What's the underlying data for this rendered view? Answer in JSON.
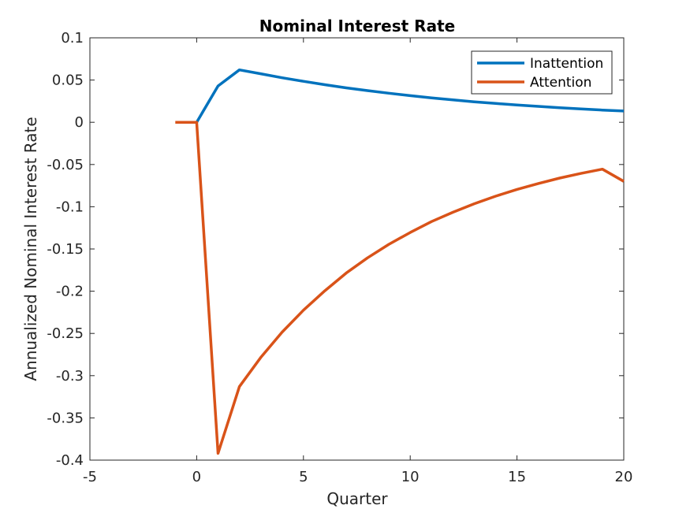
{
  "chart_data": {
    "type": "line",
    "title": "Nominal Interest Rate",
    "xlabel": "Quarter",
    "ylabel": "Annualized Nominal Interest Rate",
    "xlim": [
      -5,
      20
    ],
    "ylim": [
      -0.4,
      0.1
    ],
    "xticks": [
      -5,
      0,
      5,
      10,
      15,
      20
    ],
    "xtick_labels": [
      "-5",
      "0",
      "5",
      "10",
      "15",
      "20"
    ],
    "yticks": [
      0.1,
      0.05,
      0,
      -0.05,
      -0.1,
      -0.15,
      -0.2,
      -0.25,
      -0.3,
      -0.35,
      -0.4
    ],
    "ytick_labels": [
      "0.1",
      "0.05",
      "0",
      "-0.05",
      "-0.1",
      "-0.15",
      "-0.2",
      "-0.25",
      "-0.3",
      "-0.35",
      "-0.4"
    ],
    "grid": false,
    "legend_position": "top-right",
    "series": [
      {
        "name": "Inattention",
        "color": "#0072BD",
        "x": [
          0,
          1,
          2,
          3,
          4,
          5,
          6,
          7,
          8,
          9,
          10,
          11,
          12,
          13,
          14,
          15,
          16,
          17,
          18,
          19,
          20
        ],
        "y": [
          0,
          0.043,
          0.062,
          0.0575,
          0.0527,
          0.0485,
          0.0445,
          0.0408,
          0.0375,
          0.0344,
          0.0315,
          0.0289,
          0.0265,
          0.0243,
          0.0223,
          0.0205,
          0.0188,
          0.0172,
          0.0158,
          0.0145,
          0.0133
        ]
      },
      {
        "name": "Attention",
        "color": "#D95319",
        "x": [
          -1,
          0,
          1,
          2,
          3,
          4,
          5,
          6,
          7,
          8,
          9,
          10,
          11,
          12,
          13,
          14,
          15,
          16,
          17,
          18,
          19,
          20
        ],
        "y": [
          0,
          0,
          -0.392,
          -0.313,
          -0.2785,
          -0.2485,
          -0.2225,
          -0.1995,
          -0.1785,
          -0.1605,
          -0.1445,
          -0.1305,
          -0.1175,
          -0.1065,
          -0.0965,
          -0.0875,
          -0.0795,
          -0.0725,
          -0.066,
          -0.0605,
          -0.0555,
          -0.07
        ]
      }
    ]
  }
}
